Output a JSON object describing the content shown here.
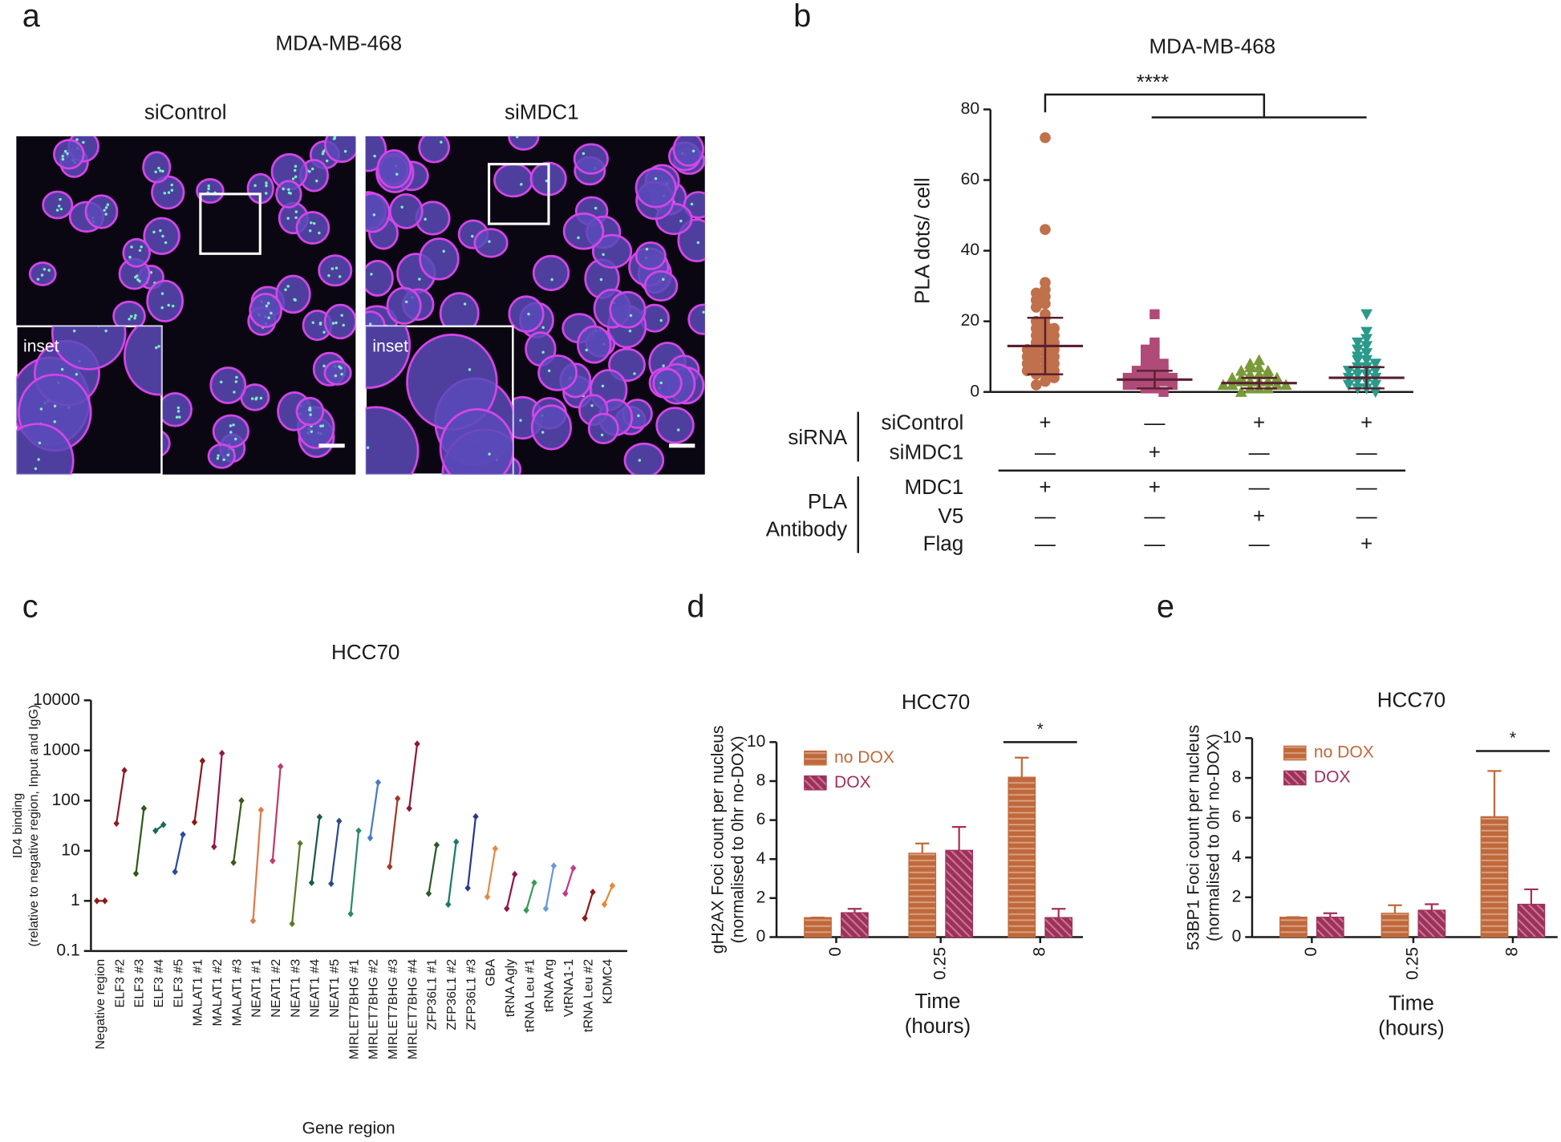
{
  "panel_a": {
    "label": "a",
    "title": "MDA-MB-468",
    "images": [
      {
        "title": "siControl",
        "inset": "inset"
      },
      {
        "title": "siMDC1",
        "inset": "inset"
      }
    ]
  },
  "chart_data": [
    {
      "type": "dotplot",
      "panel_label": "b",
      "title": "MDA-MB-468",
      "ylabel": "PLA dots/ cell",
      "ylim": [
        0,
        80
      ],
      "yticks": [
        0,
        20,
        40,
        60,
        80
      ],
      "significance": "****",
      "series": [
        {
          "color": "#c0704a",
          "marker": "circle",
          "mean": 13,
          "sd": 8,
          "values": [
            72,
            46,
            31,
            29,
            28,
            27,
            26,
            25,
            24,
            22,
            21,
            20,
            19,
            18,
            18,
            17,
            16,
            16,
            15,
            14,
            14,
            13,
            13,
            12,
            12,
            11,
            11,
            10,
            10,
            9,
            9,
            8,
            8,
            7,
            7,
            6,
            6,
            5,
            5,
            4,
            3,
            2
          ]
        },
        {
          "color": "#b04a78",
          "marker": "square",
          "mean": 3.5,
          "sd": 2.5,
          "values": [
            22,
            14,
            13,
            12,
            11,
            10,
            9,
            8,
            8,
            7,
            7,
            6,
            6,
            5,
            5,
            5,
            4,
            4,
            4,
            3,
            3,
            3,
            2,
            2,
            2,
            1,
            1,
            0
          ]
        },
        {
          "color": "#7a9a3a",
          "marker": "triangle-up",
          "mean": 2.5,
          "sd": 1.5,
          "values": [
            9,
            8,
            7,
            7,
            6,
            6,
            5,
            5,
            5,
            4,
            4,
            4,
            3,
            3,
            3,
            3,
            2,
            2,
            2,
            2,
            1,
            1,
            1,
            0
          ]
        },
        {
          "color": "#2a9a8a",
          "marker": "triangle-down",
          "mean": 4,
          "sd": 3,
          "values": [
            22,
            17,
            15,
            14,
            13,
            12,
            11,
            10,
            9,
            9,
            8,
            7,
            7,
            6,
            6,
            5,
            5,
            4,
            4,
            3,
            3,
            2,
            2,
            1,
            1,
            0
          ]
        }
      ],
      "condition_table": {
        "groups": [
          {
            "label": [
              "siRNA"
            ],
            "rows": [
              {
                "label": "siControl",
                "marks": [
                  "+",
                  "—",
                  "+",
                  "+"
                ]
              },
              {
                "label": "siMDC1",
                "marks": [
                  "—",
                  "+",
                  "—",
                  "—"
                ]
              }
            ]
          },
          {
            "label": [
              "PLA",
              "Antibody"
            ],
            "rows": [
              {
                "label": "MDC1",
                "marks": [
                  "+",
                  "+",
                  "—",
                  "—"
                ]
              },
              {
                "label": "V5",
                "marks": [
                  "—",
                  "—",
                  "+",
                  "—"
                ]
              },
              {
                "label": "Flag",
                "marks": [
                  "—",
                  "—",
                  "—",
                  "+"
                ]
              }
            ]
          }
        ]
      }
    },
    {
      "type": "range",
      "panel_label": "c",
      "title": "HCC70",
      "ylabel": [
        "ID4 binding",
        "(relative to negative region, Input and IgG)"
      ],
      "xlabel": "Gene region",
      "log_scale": true,
      "ylim": [
        0.1,
        10000
      ],
      "yticks": [
        0.1,
        1,
        10,
        100,
        1000,
        10000
      ],
      "categories": [
        "Negative region",
        "ELF3 #2",
        "ELF3 #3",
        "ELF3 #4",
        "ELF3 #5",
        "MALAT1 #1",
        "MALAT1 #2",
        "MALAT1 #3",
        "NEAT1 #1",
        "NEAT1 #2",
        "NEAT1 #3",
        "NEAT1 #4",
        "NEAT1 #5",
        "MIRLET7BHG #1",
        "MIRLET7BHG #2",
        "MIRLET7BHG #3",
        "MIRLET7BHG #4",
        "ZFP36L1 #1",
        "ZFP36L1 #2",
        "ZFP36L1 #3",
        "GBA",
        "tRNA Agly",
        "tRNA Leu #1",
        "tRNA Arg",
        "VtRNA1-1",
        "tRNA Leu #2",
        "KDMC4"
      ],
      "low": [
        1,
        35,
        3.5,
        25,
        3.8,
        37,
        12,
        5.8,
        0.4,
        6.3,
        0.35,
        2.3,
        2.2,
        0.55,
        18,
        4.8,
        70,
        1.4,
        0.85,
        1.8,
        1.2,
        0.7,
        0.65,
        0.7,
        1.4,
        0.45,
        0.85
      ],
      "high": [
        1,
        400,
        70,
        33,
        21,
        620,
        880,
        100,
        65,
        480,
        14,
        47,
        39,
        25,
        230,
        110,
        1350,
        13,
        15,
        48,
        11,
        3.4,
        2.3,
        5,
        4.5,
        1.5,
        2
      ],
      "colors": [
        "#8b1a1a",
        "#8b1a2a",
        "#2f5a1a",
        "#1a6a5a",
        "#2a4a9a",
        "#8b1a1a",
        "#8b1a4a",
        "#3a5a1a",
        "#e07a4a",
        "#c03a6a",
        "#5a7a2a",
        "#1a5a4a",
        "#2a4a8a",
        "#2a8a6a",
        "#4a7ac0",
        "#a03a2a",
        "#8b1a3a",
        "#2a5a2a",
        "#1a7a6a",
        "#2a3a8a",
        "#e08a4a",
        "#8b1a4a",
        "#3a9a5a",
        "#6a9ad0",
        "#c03a8a",
        "#8b1a1a",
        "#e08a3a"
      ]
    },
    {
      "type": "bar",
      "panel_label": "d",
      "title": "HCC70",
      "ylabel": [
        "gH2AX Foci count per nucleus",
        "(normalised to 0hr no-DOX)"
      ],
      "xlabel": [
        "Time",
        "(hours)"
      ],
      "categories": [
        "0",
        "0.25",
        "8"
      ],
      "ylim": [
        0,
        10
      ],
      "yticks": [
        0,
        2,
        4,
        6,
        8,
        10
      ],
      "significance": "*",
      "legend": "upper-left",
      "series": [
        {
          "name": "no DOX",
          "color": "#c0683a",
          "pattern": "horizontal",
          "values": [
            1,
            4.3,
            8.2
          ],
          "errors": [
            0,
            0.5,
            1.0
          ]
        },
        {
          "name": "DOX",
          "color": "#a0305a",
          "pattern": "diagonal",
          "values": [
            1.25,
            4.45,
            1.0
          ],
          "errors": [
            0.2,
            1.2,
            0.45
          ]
        }
      ]
    },
    {
      "type": "bar",
      "panel_label": "e",
      "title": "HCC70",
      "ylabel": [
        "53BP1 Foci count per nucleus",
        "(normalised to 0hr no-DOX)"
      ],
      "xlabel": [
        "Time",
        "(hours)"
      ],
      "categories": [
        "0",
        "0.25",
        "8"
      ],
      "ylim": [
        0,
        10
      ],
      "yticks": [
        0,
        2,
        4,
        6,
        8,
        10
      ],
      "significance": "*",
      "legend": "upper-left",
      "series": [
        {
          "name": "no DOX",
          "color": "#c0683a",
          "pattern": "horizontal",
          "values": [
            1,
            1.2,
            6.05
          ],
          "errors": [
            0,
            0.4,
            2.3
          ]
        },
        {
          "name": "DOX",
          "color": "#a0305a",
          "pattern": "diagonal",
          "values": [
            1.0,
            1.35,
            1.65
          ],
          "errors": [
            0.2,
            0.3,
            0.75
          ]
        }
      ]
    }
  ]
}
